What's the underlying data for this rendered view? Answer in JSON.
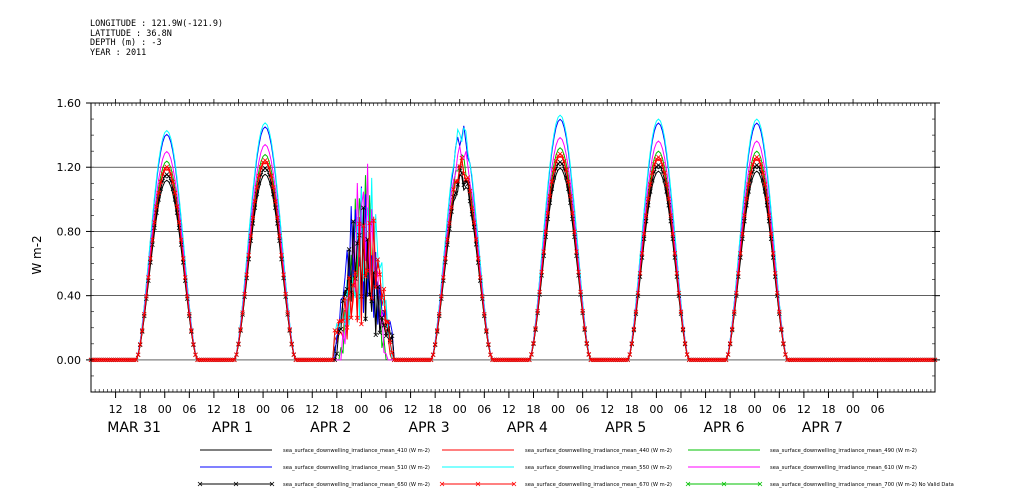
{
  "header": {
    "longitude": "LONGITUDE : 121.9W(-121.9)",
    "latitude": "LATITUDE : 36.8N",
    "depth": "DEPTH (m) : -3",
    "year": "YEAR : 2011"
  },
  "chart_data": {
    "type": "line",
    "title": "",
    "ylabel": "W m-2",
    "ylim": [
      -0.2,
      1.6
    ],
    "xlim_hours": [
      0,
      206
    ],
    "yticks": [
      0.0,
      0.4,
      0.8,
      1.2,
      1.6
    ],
    "ytick_labels": [
      "0.00",
      "0.40",
      "0.80",
      "1.20",
      "1.60"
    ],
    "hour_labels": [
      "12",
      "18",
      "00",
      "06",
      "12",
      "18",
      "00",
      "06",
      "12",
      "18",
      "00",
      "06",
      "12",
      "18",
      "00",
      "06",
      "12",
      "18",
      "00",
      "06",
      "12",
      "18",
      "00",
      "06",
      "12",
      "18",
      "00",
      "06",
      "12",
      "18",
      "00",
      "06"
    ],
    "date_labels": [
      "MAR 31",
      "APR  1",
      "APR  2",
      "APR  3",
      "APR  4",
      "APR  5",
      "APR  6",
      "APR  7"
    ],
    "day_peaks_local_offset": [
      {
        "label": "MAR 31",
        "peak": 1.19
      },
      {
        "label": "APR  1",
        "peak": 1.23
      },
      {
        "label": "APR  2",
        "peak": 1.25
      },
      {
        "label": "APR  3",
        "peak": 1.19
      },
      {
        "label": "APR  4",
        "peak": 1.27
      },
      {
        "label": "APR  5",
        "peak": 1.25
      },
      {
        "label": "APR  6",
        "peak": 1.25
      }
    ],
    "series": [
      {
        "name": "sea_surface_downwelling_irradiance_mean_410 (W m-2)",
        "color": "#000000",
        "marker": "none",
        "scale": 0.94
      },
      {
        "name": "sea_surface_downwelling_irradiance_mean_440 (W m-2)",
        "color": "#ff0000",
        "marker": "none",
        "scale": 1.0
      },
      {
        "name": "sea_surface_downwelling_irradiance_mean_490 (W m-2)",
        "color": "#00c000",
        "marker": "none",
        "scale": 1.04
      },
      {
        "name": "sea_surface_downwelling_irradiance_mean_510 (W m-2)",
        "color": "#0000ff",
        "marker": "none",
        "scale": 1.18
      },
      {
        "name": "sea_surface_downwelling_irradiance_mean_550 (W m-2)",
        "color": "#00ffff",
        "marker": "none",
        "scale": 1.2
      },
      {
        "name": "sea_surface_downwelling_irradiance_mean_610 (W m-2)",
        "color": "#ff00ff",
        "marker": "none",
        "scale": 1.09
      },
      {
        "name": "sea_surface_downwelling_irradiance_mean_650 (W m-2)",
        "color": "#000000",
        "marker": "x",
        "scale": 0.97
      },
      {
        "name": "sea_surface_downwelling_irradiance_mean_670 (W m-2)",
        "color": "#ff0000",
        "marker": "x",
        "scale": 1.01
      },
      {
        "name": "sea_surface_downwelling_irradiance_mean_700 (W m-2) No Valid Data",
        "color": "#00c000",
        "marker": "x",
        "scale": 0
      }
    ]
  }
}
